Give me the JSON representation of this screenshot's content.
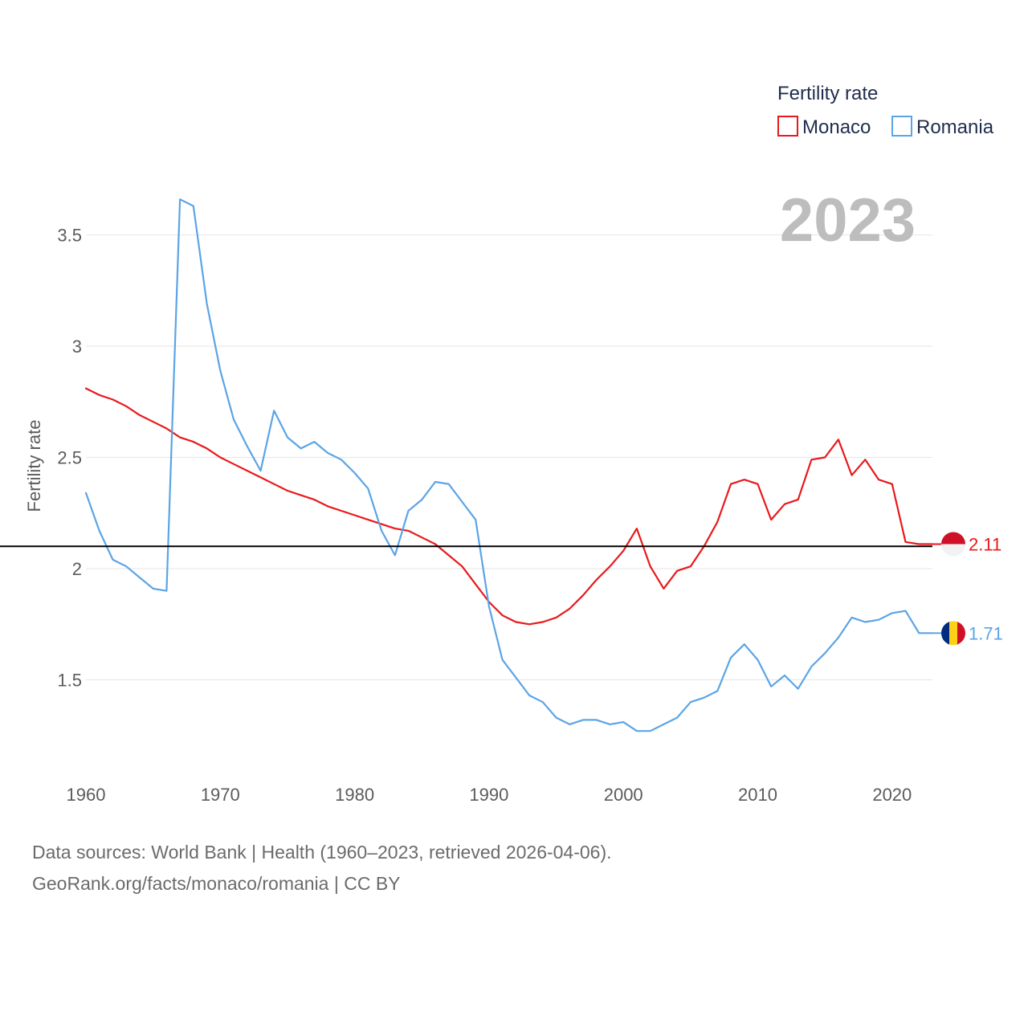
{
  "chart_data": {
    "type": "line",
    "title": "Fertility rate",
    "ylabel": "Fertility rate",
    "xlabel": "",
    "year_label": "2023",
    "x_ticks": [
      1960,
      1970,
      1980,
      1990,
      2000,
      2010,
      2020
    ],
    "y_ticks": [
      1.5,
      2,
      2.5,
      3,
      3.5
    ],
    "y_tick_labels": [
      "1.5",
      "2",
      "2.5",
      "3",
      "3.5"
    ],
    "xlim": [
      1960,
      2023
    ],
    "ylim": [
      1.2,
      3.7
    ],
    "reference_line": 2.1,
    "legend_title": "Fertility rate",
    "legend_position": "top-right",
    "grid": true,
    "series": [
      {
        "name": "Monaco",
        "color": "#e8191c",
        "end_label": "2.11",
        "years": [
          1960,
          1961,
          1962,
          1963,
          1964,
          1965,
          1966,
          1967,
          1968,
          1969,
          1970,
          1971,
          1972,
          1973,
          1974,
          1975,
          1976,
          1977,
          1978,
          1979,
          1980,
          1981,
          1982,
          1983,
          1984,
          1985,
          1986,
          1987,
          1988,
          1989,
          1990,
          1991,
          1992,
          1993,
          1994,
          1995,
          1996,
          1997,
          1998,
          1999,
          2000,
          2001,
          2002,
          2003,
          2004,
          2005,
          2006,
          2007,
          2008,
          2009,
          2010,
          2011,
          2012,
          2013,
          2014,
          2015,
          2016,
          2017,
          2018,
          2019,
          2020,
          2021,
          2022,
          2023
        ],
        "values": [
          2.81,
          2.78,
          2.76,
          2.73,
          2.69,
          2.66,
          2.63,
          2.59,
          2.57,
          2.54,
          2.5,
          2.47,
          2.44,
          2.41,
          2.38,
          2.35,
          2.33,
          2.31,
          2.28,
          2.26,
          2.24,
          2.22,
          2.2,
          2.18,
          2.17,
          2.14,
          2.11,
          2.06,
          2.01,
          1.93,
          1.85,
          1.79,
          1.76,
          1.75,
          1.76,
          1.78,
          1.82,
          1.88,
          1.95,
          2.01,
          2.08,
          2.18,
          2.01,
          1.91,
          1.99,
          2.01,
          2.1,
          2.21,
          2.38,
          2.4,
          2.38,
          2.22,
          2.29,
          2.31,
          2.49,
          2.5,
          2.58,
          2.42,
          2.49,
          2.4,
          2.38,
          2.12,
          2.11,
          2.11
        ]
      },
      {
        "name": "Romania",
        "color": "#5ba4e6",
        "end_label": "1.71",
        "years": [
          1960,
          1961,
          1962,
          1963,
          1964,
          1965,
          1966,
          1967,
          1968,
          1969,
          1970,
          1971,
          1972,
          1973,
          1974,
          1975,
          1976,
          1977,
          1978,
          1979,
          1980,
          1981,
          1982,
          1983,
          1984,
          1985,
          1986,
          1987,
          1988,
          1989,
          1990,
          1991,
          1992,
          1993,
          1994,
          1995,
          1996,
          1997,
          1998,
          1999,
          2000,
          2001,
          2002,
          2003,
          2004,
          2005,
          2006,
          2007,
          2008,
          2009,
          2010,
          2011,
          2012,
          2013,
          2014,
          2015,
          2016,
          2017,
          2018,
          2019,
          2020,
          2021,
          2022,
          2023
        ],
        "values": [
          2.34,
          2.17,
          2.04,
          2.01,
          1.96,
          1.91,
          1.9,
          3.66,
          3.63,
          3.19,
          2.89,
          2.67,
          2.55,
          2.44,
          2.71,
          2.59,
          2.54,
          2.57,
          2.52,
          2.49,
          2.43,
          2.36,
          2.17,
          2.06,
          2.26,
          2.31,
          2.39,
          2.38,
          2.3,
          2.22,
          1.83,
          1.59,
          1.51,
          1.43,
          1.4,
          1.33,
          1.3,
          1.32,
          1.32,
          1.3,
          1.31,
          1.27,
          1.27,
          1.3,
          1.33,
          1.4,
          1.42,
          1.45,
          1.6,
          1.66,
          1.59,
          1.47,
          1.52,
          1.46,
          1.56,
          1.62,
          1.69,
          1.78,
          1.76,
          1.77,
          1.8,
          1.81,
          1.71,
          1.71
        ]
      }
    ]
  },
  "footer": {
    "source": "Data sources: World Bank | Health (1960–2023, retrieved 2026-04-06).",
    "url": "GeoRank.org/facts/monaco/romania | CC BY"
  },
  "colors": {
    "grid": "#e6e6e6",
    "reference_line": "#000000"
  }
}
